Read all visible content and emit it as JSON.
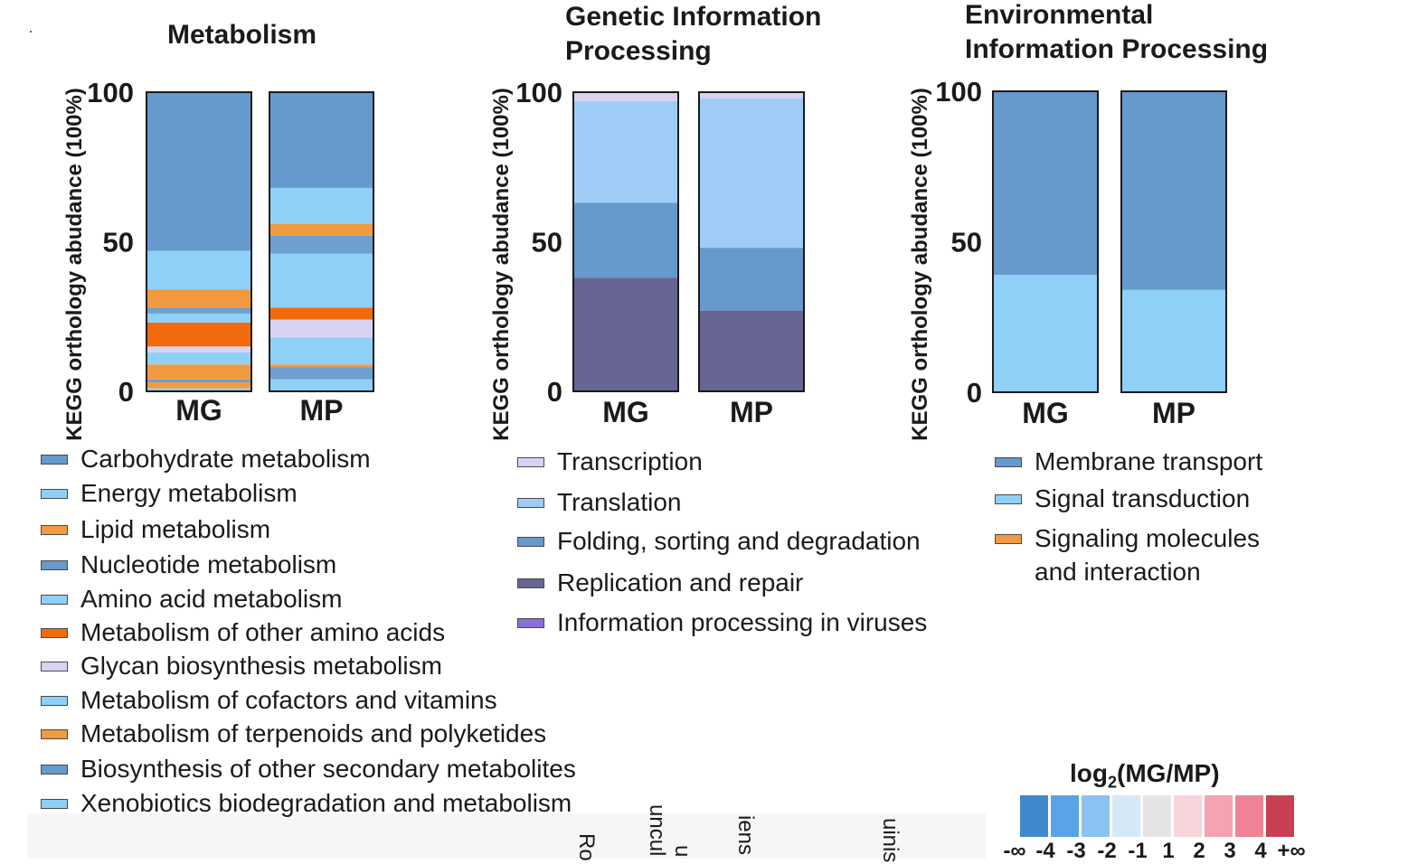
{
  "chart_data": [
    {
      "type": "bar",
      "stacked": true,
      "title": "Metabolism",
      "ylabel": "KEGG orthology abudance (100%)",
      "yticks": [
        "0",
        "50",
        "100"
      ],
      "ylim": [
        0,
        100
      ],
      "categories": [
        "MG",
        "MP"
      ],
      "series": [
        {
          "name": "Xenobiotics biodegradation and metabolism",
          "color": "#8fd0f6",
          "values": [
            1,
            4
          ]
        },
        {
          "name": "Metabolism of terpenoids and polyketides",
          "color": "#f29a3f",
          "values": [
            2,
            0
          ]
        },
        {
          "name": "Biosynthesis of other secondary metabolites",
          "color": "#6f9fd0",
          "values": [
            1,
            4
          ]
        },
        {
          "name": "Lipid metabolism",
          "color": "#f29a3f",
          "values": [
            5,
            1
          ]
        },
        {
          "name": "Energy metabolism",
          "color": "#8fd0f6",
          "values": [
            4,
            9
          ]
        },
        {
          "name": "Glycan biosynthesis metabolism",
          "color": "#d7d3f3",
          "values": [
            2,
            6
          ]
        },
        {
          "name": "Metabolism of other amino acids",
          "color": "#f26a0c",
          "values": [
            8,
            4
          ]
        },
        {
          "name": "Amino acid metabolism",
          "color": "#8fd0f6",
          "values": [
            3,
            18
          ]
        },
        {
          "name": "Nucleotide metabolism",
          "color": "#6f9fd0",
          "values": [
            2,
            6
          ]
        },
        {
          "name": "Lipid metabolism",
          "color": "#f29a3f",
          "values": [
            6,
            4
          ]
        },
        {
          "name": "Metabolism of cofactors and vitamins",
          "color": "#8fd0f6",
          "values": [
            13,
            12
          ]
        },
        {
          "name": "Carbohydrate metabolism",
          "color": "#6699cc",
          "values": [
            53,
            32
          ]
        }
      ],
      "legend": [
        {
          "label": "Carbohydrate metabolism",
          "color": "#6699cc"
        },
        {
          "label": "Energy metabolism",
          "color": "#8fd0f6"
        },
        {
          "label": "Lipid metabolism",
          "color": "#f29a3f"
        },
        {
          "label": "Nucleotide metabolism",
          "color": "#6699cc"
        },
        {
          "label": "Amino acid metabolism",
          "color": "#8fd0f6"
        },
        {
          "label": "Metabolism of other amino acids",
          "color": "#f26a0c"
        },
        {
          "label": "Glycan biosynthesis metabolism",
          "color": "#d7d3f3"
        },
        {
          "label": "Metabolism of cofactors and vitamins",
          "color": "#8fd0f6"
        },
        {
          "label": "Metabolism of terpenoids and polyketides",
          "color": "#f29a3f"
        },
        {
          "label": "Biosynthesis of other secondary metabolites",
          "color": "#6699cc"
        },
        {
          "label": "Xenobiotics biodegradation and metabolism",
          "color": "#8fd0f6"
        }
      ],
      "legend_position": "below"
    },
    {
      "type": "bar",
      "stacked": true,
      "title": "Genetic Information\nProcessing",
      "ylabel": "KEGG orthology abudance (100%)",
      "yticks": [
        "0",
        "50",
        "100"
      ],
      "ylim": [
        0,
        100
      ],
      "categories": [
        "MG",
        "MP"
      ],
      "series": [
        {
          "name": "Replication and repair",
          "color": "#676593",
          "values": [
            38,
            27
          ]
        },
        {
          "name": "Folding, sorting and degradation",
          "color": "#6699cc",
          "values": [
            25,
            21
          ]
        },
        {
          "name": "Translation",
          "color": "#9fccf7",
          "values": [
            34,
            50
          ]
        },
        {
          "name": "Transcription",
          "color": "#d7d3f3",
          "values": [
            3,
            2
          ]
        }
      ],
      "legend": [
        {
          "label": "Transcription",
          "color": "#d7d3f3"
        },
        {
          "label": "Translation",
          "color": "#9fccf7"
        },
        {
          "label": "Folding, sorting and degradation",
          "color": "#6699cc"
        },
        {
          "label": "Replication and repair",
          "color": "#676593"
        },
        {
          "label": "Information processing in viruses",
          "color": "#8a6fd8"
        }
      ],
      "legend_position": "below"
    },
    {
      "type": "bar",
      "stacked": true,
      "title": "Environmental\nInformation Processing",
      "ylabel": "KEGG orthology abudance (100%)",
      "yticks": [
        "0",
        "50",
        "100"
      ],
      "ylim": [
        0,
        100
      ],
      "categories": [
        "MG",
        "MP"
      ],
      "series": [
        {
          "name": "Signal transduction",
          "color": "#8fd0f6",
          "values": [
            39,
            34
          ]
        },
        {
          "name": "Membrane transport",
          "color": "#6699cc",
          "values": [
            61,
            66
          ]
        }
      ],
      "legend": [
        {
          "label": "Membrane transport",
          "color": "#6699cc"
        },
        {
          "label": "Signal transduction",
          "color": "#8fd0f6"
        },
        {
          "label": "Signaling molecules\nand interaction",
          "color": "#f29a3f"
        }
      ],
      "legend_position": "below"
    }
  ],
  "scale": {
    "title_prefix": "log",
    "title_sub": "2",
    "title_suffix": "(MG/MP)",
    "colors": [
      "#3f88cc",
      "#5aa3e6",
      "#8cc2f2",
      "#d6e8f8",
      "#e4e4e4",
      "#f8d4da",
      "#f5a3b2",
      "#ef8396",
      "#c94050"
    ],
    "labels": [
      "-∞",
      "-4",
      "-3",
      "-2",
      "-1",
      "1",
      "2",
      "3",
      "4",
      "+∞"
    ]
  },
  "cut_labels": [
    "Ro",
    "uncul",
    "u",
    "iens",
    "uinis"
  ]
}
